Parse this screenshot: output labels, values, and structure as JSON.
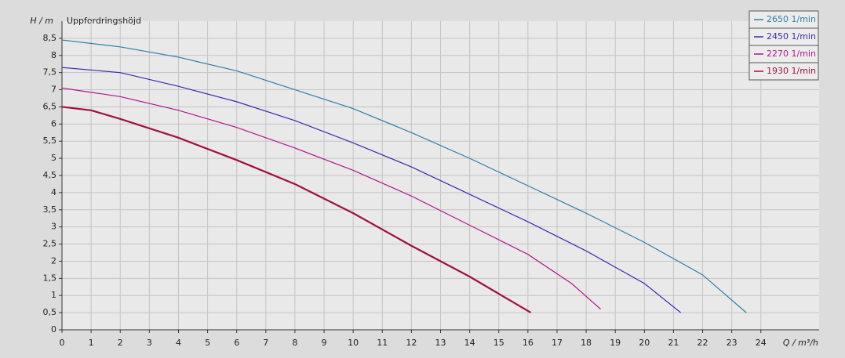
{
  "chart_data": {
    "type": "line",
    "title": "Uppfordringshöjd",
    "y_label": "H / m",
    "x_label": "Q / m³/h",
    "xlim": [
      0,
      26
    ],
    "xticks": [
      0,
      1,
      2,
      3,
      4,
      5,
      6,
      7,
      8,
      9,
      10,
      11,
      12,
      13,
      14,
      15,
      16,
      17,
      18,
      19,
      20,
      21,
      22,
      23,
      24
    ],
    "ylim": [
      0,
      9
    ],
    "yticks": [
      0,
      {
        "value": 0.5,
        "label": "0,5"
      },
      1,
      {
        "value": 1.5,
        "label": "1,5"
      },
      2,
      {
        "value": 2.5,
        "label": "2,5"
      },
      3,
      {
        "value": 3.5,
        "label": "3,5"
      },
      4,
      {
        "value": 4.5,
        "label": "4,5"
      },
      5,
      {
        "value": 5.5,
        "label": "5,5"
      },
      6,
      {
        "value": 6.5,
        "label": "6,5"
      },
      7,
      {
        "value": 7.5,
        "label": "7,5"
      },
      8,
      {
        "value": 8.5,
        "label": "8,5"
      }
    ],
    "grid": true,
    "legend": "top-right",
    "series": [
      {
        "name": "2650 1/min",
        "color": "#2a7fab",
        "x": [
          0,
          2,
          4,
          6,
          8,
          10,
          12,
          14,
          16,
          18,
          20,
          22,
          23.5
        ],
        "values": [
          8.45,
          8.25,
          7.95,
          7.55,
          7.0,
          6.45,
          5.75,
          5.0,
          4.2,
          3.4,
          2.55,
          1.6,
          0.5
        ]
      },
      {
        "name": "2450 1/min",
        "color": "#3a2bb0",
        "x": [
          0,
          2,
          4,
          6,
          8,
          10,
          12,
          14,
          16,
          18,
          20,
          21.25
        ],
        "values": [
          7.65,
          7.5,
          7.1,
          6.65,
          6.1,
          5.45,
          4.75,
          3.95,
          3.15,
          2.3,
          1.35,
          0.5
        ]
      },
      {
        "name": "2270 1/min",
        "color": "#b0188f",
        "x": [
          0,
          2,
          4,
          6,
          8,
          10,
          12,
          14,
          16,
          17.5,
          18.5
        ],
        "values": [
          7.05,
          6.8,
          6.4,
          5.9,
          5.3,
          4.65,
          3.9,
          3.05,
          2.2,
          1.35,
          0.6
        ]
      },
      {
        "name": "1930 1/min",
        "color": "#a01040",
        "x": [
          0,
          1,
          2,
          4,
          6,
          8,
          10,
          12,
          14,
          16.1
        ],
        "values": [
          6.5,
          6.4,
          6.15,
          5.6,
          4.95,
          4.25,
          3.4,
          2.45,
          1.55,
          0.5
        ]
      }
    ]
  }
}
